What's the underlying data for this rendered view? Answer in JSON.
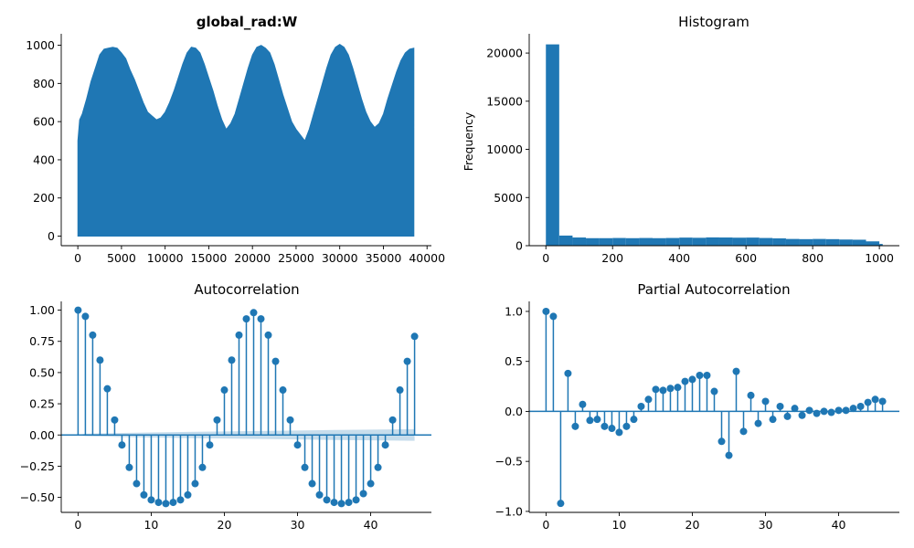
{
  "colors": {
    "primary": "#1f77b4",
    "band": "#1f77b4"
  },
  "chart_data": [
    {
      "id": "timeseries",
      "type": "area",
      "title": "global_rad:W",
      "xlabel": "",
      "ylabel": "",
      "xlim": [
        -1900,
        40500
      ],
      "ylim": [
        -50,
        1060
      ],
      "xticks": [
        0,
        5000,
        10000,
        15000,
        20000,
        25000,
        30000,
        35000,
        40000
      ],
      "xtick_labels": [
        "0",
        "5000",
        "10000",
        "15000",
        "20000",
        "25000",
        "30000",
        "35000",
        "40000"
      ],
      "yticks": [
        0,
        200,
        400,
        600,
        800,
        1000
      ],
      "ytick_labels": [
        "0",
        "200",
        "400",
        "600",
        "800",
        "1000"
      ],
      "envelope": {
        "x": [
          0,
          200,
          500,
          1000,
          1500,
          2000,
          2500,
          3000,
          3500,
          4000,
          4500,
          5000,
          5500,
          6000,
          6500,
          7000,
          7500,
          8000,
          8500,
          9000,
          9500,
          10000,
          10500,
          11000,
          11500,
          12000,
          12500,
          13000,
          13500,
          14000,
          14500,
          15000,
          15500,
          16000,
          16500,
          17000,
          17500,
          18000,
          18500,
          19000,
          19500,
          20000,
          20500,
          21000,
          21500,
          22000,
          22500,
          23000,
          23500,
          24000,
          24500,
          25000,
          25500,
          26000,
          26500,
          27000,
          27500,
          28000,
          28500,
          29000,
          29500,
          30000,
          30500,
          31000,
          31500,
          32000,
          32500,
          33000,
          33500,
          34000,
          34500,
          35000,
          35500,
          36000,
          36500,
          37000,
          37500,
          38000,
          38500
        ],
        "y": [
          500,
          610,
          640,
          720,
          810,
          880,
          950,
          980,
          985,
          990,
          985,
          960,
          930,
          870,
          820,
          760,
          700,
          650,
          630,
          610,
          620,
          650,
          700,
          760,
          830,
          900,
          960,
          990,
          985,
          960,
          900,
          830,
          760,
          680,
          610,
          560,
          590,
          640,
          720,
          800,
          880,
          950,
          990,
          1000,
          985,
          960,
          900,
          820,
          740,
          670,
          600,
          560,
          530,
          500,
          560,
          640,
          720,
          800,
          880,
          950,
          990,
          1005,
          990,
          950,
          880,
          800,
          720,
          650,
          600,
          570,
          590,
          640,
          720,
          790,
          860,
          920,
          960,
          980,
          985
        ]
      },
      "xmax": 38500
    },
    {
      "id": "histogram",
      "type": "bar",
      "title": "Histogram",
      "xlabel": "",
      "ylabel": "Frequency",
      "xlim": [
        -50,
        1060
      ],
      "ylim": [
        0,
        22000
      ],
      "xticks": [
        0,
        200,
        400,
        600,
        800,
        1000
      ],
      "xtick_labels": [
        "0",
        "200",
        "400",
        "600",
        "800",
        "1000"
      ],
      "yticks": [
        0,
        5000,
        10000,
        15000,
        20000
      ],
      "ytick_labels": [
        "0",
        "5000",
        "10000",
        "15000",
        "20000"
      ],
      "bin_edges": [
        0,
        40,
        80,
        120,
        160,
        200,
        240,
        280,
        320,
        360,
        400,
        440,
        480,
        520,
        560,
        600,
        640,
        680,
        720,
        760,
        800,
        840,
        880,
        920,
        960,
        1000,
        1010
      ],
      "values": [
        20900,
        1050,
        850,
        780,
        780,
        800,
        780,
        800,
        780,
        800,
        840,
        820,
        860,
        850,
        830,
        840,
        800,
        760,
        700,
        680,
        700,
        680,
        640,
        620,
        450,
        180
      ]
    },
    {
      "id": "acf",
      "type": "scatter",
      "title": "Autocorrelation",
      "xlabel": "",
      "ylabel": "",
      "xlim": [
        -2.3,
        48.3
      ],
      "ylim": [
        -0.62,
        1.07
      ],
      "xticks": [
        0,
        10,
        20,
        30,
        40
      ],
      "xtick_labels": [
        "0",
        "10",
        "20",
        "30",
        "40"
      ],
      "yticks": [
        -0.5,
        -0.25,
        0,
        0.25,
        0.5,
        0.75,
        1.0
      ],
      "ytick_labels": [
        "−0.50",
        "−0.25",
        "0.00",
        "0.25",
        "0.50",
        "0.75",
        "1.00"
      ],
      "lags": [
        0,
        1,
        2,
        3,
        4,
        5,
        6,
        7,
        8,
        9,
        10,
        11,
        12,
        13,
        14,
        15,
        16,
        17,
        18,
        19,
        20,
        21,
        22,
        23,
        24,
        25,
        26,
        27,
        28,
        29,
        30,
        31,
        32,
        33,
        34,
        35,
        36,
        37,
        38,
        39,
        40,
        41,
        42,
        43,
        44,
        45,
        46
      ],
      "values": [
        1.0,
        0.95,
        0.8,
        0.6,
        0.37,
        0.12,
        -0.08,
        -0.26,
        -0.39,
        -0.48,
        -0.52,
        -0.54,
        -0.55,
        -0.54,
        -0.52,
        -0.48,
        -0.39,
        -0.26,
        -0.08,
        0.12,
        0.36,
        0.6,
        0.8,
        0.93,
        0.98,
        0.93,
        0.8,
        0.59,
        0.36,
        0.12,
        -0.08,
        -0.26,
        -0.39,
        -0.48,
        -0.52,
        -0.54,
        -0.55,
        -0.54,
        -0.52,
        -0.47,
        -0.39,
        -0.26,
        -0.08,
        0.12,
        0.36,
        0.59,
        0.79
      ],
      "confidence_band": {
        "lags": [
          0,
          1,
          5,
          10,
          15,
          20,
          25,
          30,
          35,
          40,
          46
        ],
        "halfwidth": [
          0.0,
          0.01,
          0.015,
          0.02,
          0.025,
          0.028,
          0.032,
          0.036,
          0.04,
          0.043,
          0.047
        ]
      }
    },
    {
      "id": "pacf",
      "type": "scatter",
      "title": "Partial Autocorrelation",
      "xlabel": "",
      "ylabel": "",
      "xlim": [
        -2.3,
        48.3
      ],
      "ylim": [
        -1.01,
        1.1
      ],
      "xticks": [
        0,
        10,
        20,
        30,
        40
      ],
      "xtick_labels": [
        "0",
        "10",
        "20",
        "30",
        "40"
      ],
      "yticks": [
        -1.0,
        -0.5,
        0,
        0.5,
        1.0
      ],
      "ytick_labels": [
        "−1.0",
        "−0.5",
        "0.0",
        "0.5",
        "1.0"
      ],
      "lags": [
        0,
        1,
        2,
        3,
        4,
        5,
        6,
        7,
        8,
        9,
        10,
        11,
        12,
        13,
        14,
        15,
        16,
        17,
        18,
        19,
        20,
        21,
        22,
        23,
        24,
        25,
        26,
        27,
        28,
        29,
        30,
        31,
        32,
        33,
        34,
        35,
        36,
        37,
        38,
        39,
        40,
        41,
        42,
        43,
        44,
        45,
        46
      ],
      "values": [
        1.0,
        0.95,
        -0.92,
        0.38,
        -0.15,
        0.07,
        -0.09,
        -0.08,
        -0.15,
        -0.17,
        -0.21,
        -0.15,
        -0.08,
        0.05,
        0.12,
        0.22,
        0.21,
        0.23,
        0.24,
        0.3,
        0.32,
        0.36,
        0.36,
        0.2,
        -0.3,
        -0.44,
        0.4,
        -0.2,
        0.16,
        -0.12,
        0.1,
        -0.08,
        0.05,
        -0.05,
        0.03,
        -0.04,
        0.01,
        -0.02,
        0.0,
        -0.01,
        0.01,
        0.01,
        0.03,
        0.05,
        0.09,
        0.12,
        0.1
      ]
    }
  ]
}
